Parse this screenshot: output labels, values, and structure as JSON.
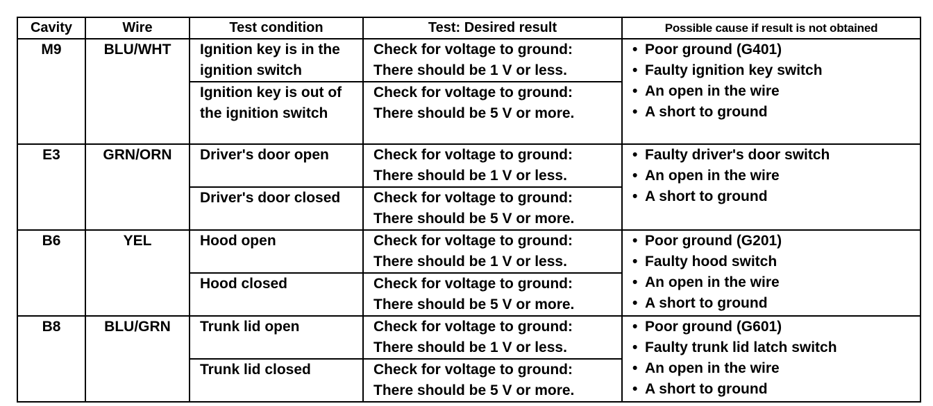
{
  "headers": [
    "Cavity",
    "Wire",
    "Test condition",
    "Test: Desired result",
    "Possible cause if result is not obtained"
  ],
  "rows": [
    {
      "cavity": "M9",
      "wire": "BLU/WHT",
      "tests": [
        {
          "condition": "Ignition key is in the ignition switch",
          "result": [
            "Check for voltage to ground:",
            "There should be 1 V or less."
          ]
        },
        {
          "condition": "Ignition key is out of the ignition switch",
          "result": [
            "Check for voltage to ground:",
            "There should be 5 V or more."
          ]
        }
      ],
      "causes": [
        "Poor ground (G401)",
        "Faulty ignition key switch",
        "An open in the wire",
        "A short to ground"
      ]
    },
    {
      "cavity": "E3",
      "wire": "GRN/ORN",
      "tests": [
        {
          "condition": "Driver's door open",
          "result": [
            "Check for voltage to ground:",
            "There should be 1 V or less."
          ]
        },
        {
          "condition": "Driver's door closed",
          "result": [
            "Check for voltage to ground:",
            "There should be 5 V or more."
          ]
        }
      ],
      "causes": [
        "Faulty driver's door switch",
        "An open in the wire",
        "A short to ground"
      ]
    },
    {
      "cavity": "B6",
      "wire": "YEL",
      "tests": [
        {
          "condition": "Hood open",
          "result": [
            "Check for voltage to ground:",
            "There should be 1 V or less."
          ]
        },
        {
          "condition": "Hood closed",
          "result": [
            "Check for voltage to ground:",
            "There should be 5 V or more."
          ]
        }
      ],
      "causes": [
        "Poor ground (G201)",
        "Faulty hood switch",
        "An open in the wire",
        "A short to ground"
      ]
    },
    {
      "cavity": "B8",
      "wire": "BLU/GRN",
      "tests": [
        {
          "condition": "Trunk lid open",
          "result": [
            "Check for voltage to ground:",
            "There should be 1 V or less."
          ]
        },
        {
          "condition": "Trunk lid closed",
          "result": [
            "Check for voltage to ground:",
            "There should be 5 V or more."
          ]
        }
      ],
      "causes": [
        "Poor ground (G601)",
        "Faulty trunk lid latch switch",
        "An open in the wire",
        "A short to ground"
      ]
    }
  ]
}
